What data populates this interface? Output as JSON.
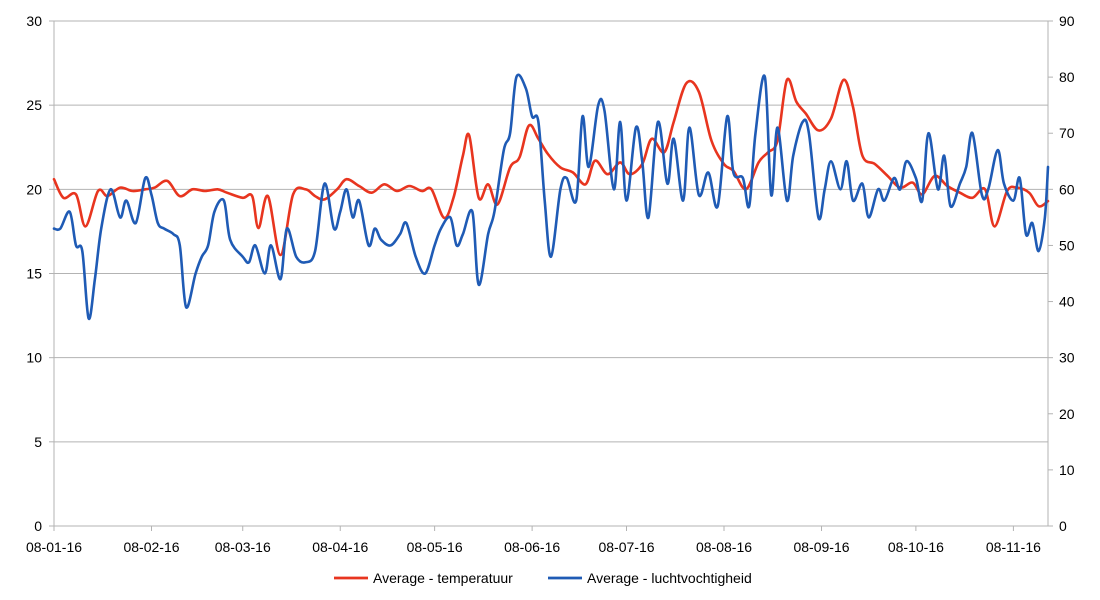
{
  "chart_data": {
    "type": "line",
    "title": "",
    "xlabel": "",
    "ylabel": "",
    "y2label": "",
    "x_tick_labels": [
      "08-01-16",
      "08-02-16",
      "08-03-16",
      "08-04-16",
      "08-05-16",
      "08-06-16",
      "08-07-16",
      "08-08-16",
      "08-09-16",
      "08-10-16",
      "08-11-16"
    ],
    "ylim": [
      0,
      30
    ],
    "y_ticks": [
      0,
      5,
      10,
      15,
      20,
      25,
      30
    ],
    "y2lim": [
      0,
      90
    ],
    "y2_ticks": [
      0,
      10,
      20,
      30,
      40,
      50,
      60,
      70,
      80,
      90
    ],
    "grid": "horizontal",
    "legend_position": "bottom",
    "series": [
      {
        "name": "Average - temperatuur",
        "axis": "left",
        "color": "#e8351f",
        "x": [
          "2016-01-01",
          "2016-01-04",
          "2016-01-08",
          "2016-01-11",
          "2016-01-15",
          "2016-01-18",
          "2016-01-22",
          "2016-01-26",
          "2016-01-30",
          "2016-02-02",
          "2016-02-06",
          "2016-02-10",
          "2016-02-14",
          "2016-02-18",
          "2016-02-22",
          "2016-02-25",
          "2016-03-01",
          "2016-03-04",
          "2016-03-06",
          "2016-03-09",
          "2016-03-13",
          "2016-03-17",
          "2016-03-21",
          "2016-03-24",
          "2016-03-27",
          "2016-03-31",
          "2016-04-03",
          "2016-04-07",
          "2016-04-11",
          "2016-04-15",
          "2016-04-19",
          "2016-04-23",
          "2016-04-27",
          "2016-04-30",
          "2016-05-04",
          "2016-05-07",
          "2016-05-10",
          "2016-05-12",
          "2016-05-15",
          "2016-05-18",
          "2016-05-21",
          "2016-05-25",
          "2016-05-28",
          "2016-05-31",
          "2016-06-03",
          "2016-06-06",
          "2016-06-10",
          "2016-06-14",
          "2016-06-18",
          "2016-06-21",
          "2016-06-25",
          "2016-06-29",
          "2016-07-02",
          "2016-07-06",
          "2016-07-09",
          "2016-07-13",
          "2016-07-16",
          "2016-07-20",
          "2016-07-24",
          "2016-07-28",
          "2016-08-01",
          "2016-08-04",
          "2016-08-08",
          "2016-08-12",
          "2016-08-15",
          "2016-08-18",
          "2016-08-21",
          "2016-08-24",
          "2016-08-27",
          "2016-08-31",
          "2016-09-04",
          "2016-09-08",
          "2016-09-11",
          "2016-09-14",
          "2016-09-18",
          "2016-09-22",
          "2016-09-26",
          "2016-09-30",
          "2016-10-03",
          "2016-10-07",
          "2016-10-11",
          "2016-10-15",
          "2016-10-19",
          "2016-10-23",
          "2016-10-26",
          "2016-10-30",
          "2016-11-02",
          "2016-11-06",
          "2016-11-09",
          "2016-11-12"
        ],
        "values": [
          20.6,
          19.5,
          19.7,
          17.8,
          19.9,
          19.6,
          20.1,
          19.9,
          20.0,
          20.1,
          20.5,
          19.6,
          20.0,
          19.9,
          20.0,
          19.8,
          19.5,
          19.6,
          17.7,
          19.6,
          16.1,
          19.7,
          20.0,
          19.6,
          19.4,
          20.0,
          20.6,
          20.2,
          19.8,
          20.3,
          19.9,
          20.2,
          19.9,
          20.0,
          18.3,
          19.5,
          22.0,
          23.2,
          19.5,
          20.3,
          19.1,
          21.3,
          21.9,
          23.8,
          23.0,
          22.1,
          21.3,
          21.0,
          20.3,
          21.7,
          20.9,
          21.6,
          20.9,
          21.5,
          23.0,
          22.2,
          24.0,
          26.3,
          25.8,
          22.9,
          21.5,
          21.1,
          20.0,
          21.6,
          22.2,
          22.9,
          26.5,
          25.2,
          24.5,
          23.5,
          24.2,
          26.5,
          24.9,
          22.0,
          21.5,
          20.8,
          20.1,
          20.4,
          19.7,
          20.8,
          20.2,
          19.8,
          19.5,
          20.0,
          17.8,
          19.9,
          20.1,
          19.8,
          19.0,
          19.3
        ]
      },
      {
        "name": "Average - luchtvochtigheid",
        "axis": "right",
        "color": "#1f5bb5",
        "x": [
          "2016-01-01",
          "2016-01-03",
          "2016-01-06",
          "2016-01-08",
          "2016-01-10",
          "2016-01-12",
          "2016-01-14",
          "2016-01-16",
          "2016-01-19",
          "2016-01-22",
          "2016-01-24",
          "2016-01-27",
          "2016-01-30",
          "2016-02-01",
          "2016-02-03",
          "2016-02-05",
          "2016-02-08",
          "2016-02-10",
          "2016-02-12",
          "2016-02-15",
          "2016-02-17",
          "2016-02-19",
          "2016-02-21",
          "2016-02-24",
          "2016-02-26",
          "2016-03-01",
          "2016-03-03",
          "2016-03-05",
          "2016-03-08",
          "2016-03-10",
          "2016-03-13",
          "2016-03-15",
          "2016-03-18",
          "2016-03-21",
          "2016-03-24",
          "2016-03-27",
          "2016-03-30",
          "2016-04-01",
          "2016-04-03",
          "2016-04-05",
          "2016-04-07",
          "2016-04-10",
          "2016-04-12",
          "2016-04-14",
          "2016-04-17",
          "2016-04-20",
          "2016-04-22",
          "2016-04-25",
          "2016-04-28",
          "2016-05-01",
          "2016-05-03",
          "2016-05-06",
          "2016-05-08",
          "2016-05-10",
          "2016-05-13",
          "2016-05-15",
          "2016-05-18",
          "2016-05-20",
          "2016-05-23",
          "2016-05-25",
          "2016-05-27",
          "2016-05-30",
          "2016-06-01",
          "2016-06-03",
          "2016-06-05",
          "2016-06-07",
          "2016-06-10",
          "2016-06-12",
          "2016-06-15",
          "2016-06-17",
          "2016-06-19",
          "2016-06-22",
          "2016-06-24",
          "2016-06-27",
          "2016-06-29",
          "2016-07-01",
          "2016-07-04",
          "2016-07-06",
          "2016-07-08",
          "2016-07-11",
          "2016-07-14",
          "2016-07-16",
          "2016-07-19",
          "2016-07-21",
          "2016-07-24",
          "2016-07-27",
          "2016-07-30",
          "2016-08-02",
          "2016-08-04",
          "2016-08-07",
          "2016-08-09",
          "2016-08-11",
          "2016-08-14",
          "2016-08-16",
          "2016-08-18",
          "2016-08-21",
          "2016-08-23",
          "2016-08-26",
          "2016-08-28",
          "2016-08-31",
          "2016-09-02",
          "2016-09-04",
          "2016-09-07",
          "2016-09-09",
          "2016-09-11",
          "2016-09-14",
          "2016-09-16",
          "2016-09-19",
          "2016-09-21",
          "2016-09-24",
          "2016-09-26",
          "2016-09-28",
          "2016-10-01",
          "2016-10-03",
          "2016-10-05",
          "2016-10-08",
          "2016-10-10",
          "2016-10-12",
          "2016-10-15",
          "2016-10-17",
          "2016-10-19",
          "2016-10-22",
          "2016-10-24",
          "2016-10-27",
          "2016-10-29",
          "2016-11-01",
          "2016-11-03",
          "2016-11-05",
          "2016-11-07",
          "2016-11-09",
          "2016-11-11",
          "2016-11-12"
        ],
        "values": [
          53,
          53,
          56,
          50,
          49,
          37,
          44,
          53,
          60,
          55,
          58,
          54,
          62,
          59,
          54,
          53,
          52,
          50,
          39,
          45,
          48,
          50,
          56,
          58,
          51,
          48,
          47,
          50,
          45,
          50,
          44,
          53,
          48,
          47,
          49,
          61,
          53,
          56,
          60,
          55,
          58,
          50,
          53,
          51,
          50,
          52,
          54,
          48,
          45,
          50,
          53,
          55,
          50,
          52,
          56,
          43,
          52,
          56,
          67,
          70,
          80,
          78,
          73,
          72,
          58,
          48,
          60,
          62,
          58,
          73,
          64,
          75,
          74,
          60,
          72,
          58,
          71,
          65,
          55,
          72,
          61,
          69,
          58,
          71,
          59,
          63,
          57,
          73,
          63,
          62,
          57,
          70,
          80,
          59,
          71,
          58,
          66,
          72,
          70,
          55,
          60,
          65,
          60,
          65,
          58,
          61,
          55,
          60,
          58,
          62,
          60,
          65,
          62,
          58,
          70,
          60,
          66,
          57,
          61,
          64,
          70,
          59,
          60,
          67,
          61,
          58,
          62,
          52,
          54,
          49,
          55,
          64
        ]
      }
    ]
  }
}
